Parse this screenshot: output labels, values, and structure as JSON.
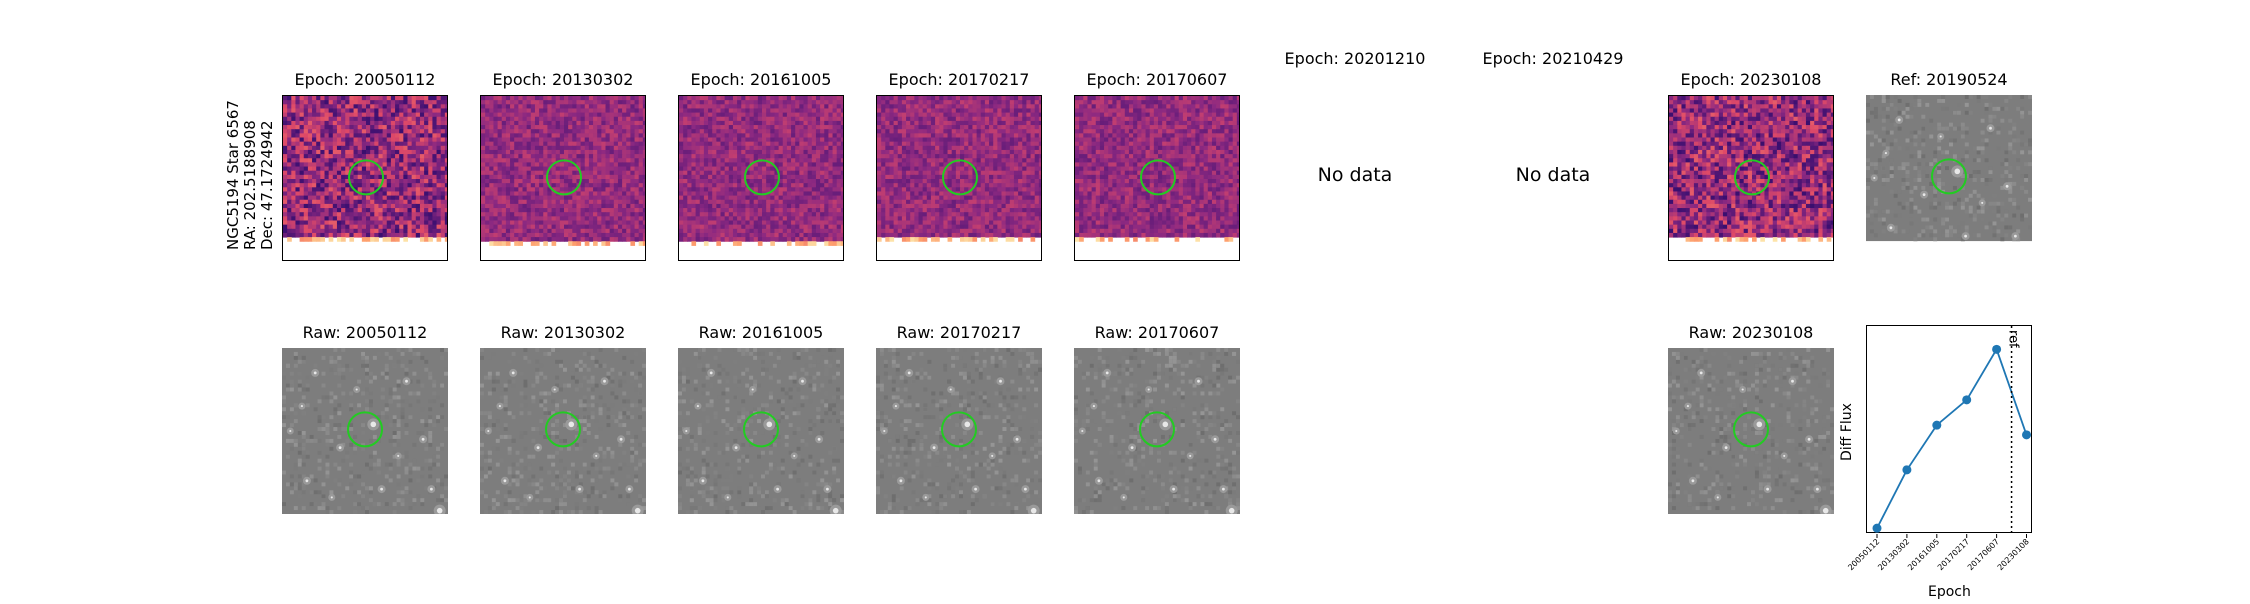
{
  "row_label": [
    "NGC5194 Star 6567",
    "RA: 202.5188908",
    "Dec: 47.1724942"
  ],
  "diff_row": [
    {
      "title": "Epoch: 20050112",
      "has_data": true,
      "noise_seed": 11,
      "coverage": 0.86
    },
    {
      "title": "Epoch: 20130302",
      "has_data": true,
      "noise_seed": 23,
      "coverage": 0.87
    },
    {
      "title": "Epoch: 20161005",
      "has_data": true,
      "noise_seed": 37,
      "coverage": 0.87
    },
    {
      "title": "Epoch: 20170217",
      "has_data": true,
      "noise_seed": 41,
      "coverage": 0.86
    },
    {
      "title": "Epoch: 20170607",
      "has_data": true,
      "noise_seed": 53,
      "coverage": 0.86
    },
    {
      "title": "Epoch: 20201210",
      "has_data": false,
      "nodata_text": "No data"
    },
    {
      "title": "Epoch: 20210429",
      "has_data": false,
      "nodata_text": "No data"
    },
    {
      "title": "Epoch: 20230108",
      "has_data": true,
      "noise_seed": 67,
      "coverage": 0.85
    },
    {
      "title": "Ref: 20190524",
      "has_data": true,
      "is_ref": true
    }
  ],
  "raw_row": [
    {
      "title": "Raw: 20050112",
      "col": 0
    },
    {
      "title": "Raw: 20130302",
      "col": 1
    },
    {
      "title": "Raw: 20161005",
      "col": 2
    },
    {
      "title": "Raw: 20170217",
      "col": 3
    },
    {
      "title": "Raw: 20170607",
      "col": 4
    },
    {
      "title": "Raw: 20230108",
      "col": 7
    }
  ],
  "colors": {
    "circle": "#22cc22",
    "series": "#1f77b4",
    "diff_base": "#b6377a"
  },
  "chart_data": {
    "type": "line",
    "x": [
      "20050112",
      "20130302",
      "20161005",
      "20170217",
      "20170607",
      "20230108"
    ],
    "values": [
      1.0,
      4.0,
      6.3,
      7.6,
      10.2,
      5.8
    ],
    "ref_line_label": "ref",
    "ref_line_position": 4.5,
    "xlabel": "Epoch",
    "ylabel": "Diff Flux",
    "ylim": [
      0.7,
      11.4
    ]
  }
}
